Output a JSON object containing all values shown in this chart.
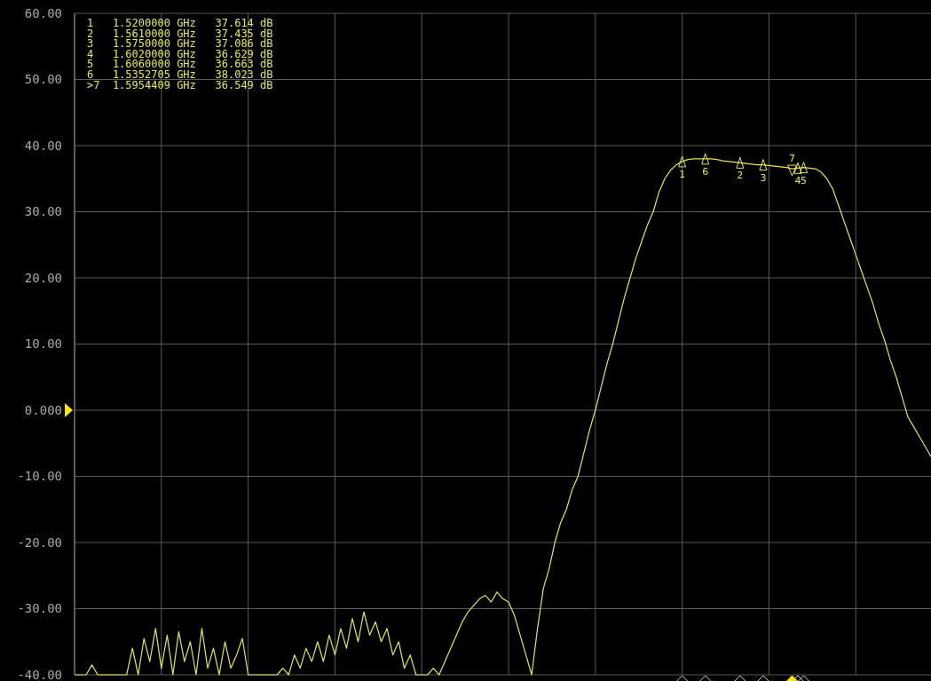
{
  "chart_data": {
    "type": "line",
    "categories": [
      null,
      null,
      null,
      null,
      null,
      null,
      null,
      null,
      null,
      null,
      null,
      null,
      null,
      null,
      null,
      null,
      null,
      null,
      null,
      null,
      null,
      null,
      null,
      null,
      null,
      null,
      null,
      null,
      null,
      null,
      null,
      null,
      null,
      null,
      null,
      null,
      null,
      null,
      null,
      null,
      null,
      null,
      null,
      null,
      null,
      null,
      null,
      null,
      null,
      null,
      null,
      null,
      null,
      null,
      null,
      null,
      null,
      null,
      null,
      null,
      null,
      null,
      null,
      null,
      null,
      null,
      null,
      null,
      null,
      null,
      null,
      null,
      null,
      null,
      null,
      null,
      null,
      null,
      null,
      null,
      null,
      null,
      null,
      null,
      null,
      null,
      null,
      null,
      null,
      null,
      null,
      null,
      null,
      null,
      null,
      null,
      null,
      null,
      null,
      null,
      null,
      null,
      null,
      null,
      null,
      null,
      null,
      null,
      null,
      null,
      null,
      null,
      null,
      null,
      null,
      null,
      null,
      null,
      null,
      null,
      null,
      null,
      null,
      null,
      null,
      null,
      null,
      null,
      null,
      null,
      null,
      null,
      null,
      null,
      null,
      null,
      null,
      null,
      null,
      null,
      null,
      null,
      null,
      null,
      null,
      null,
      null,
      null,
      null
    ],
    "ylim": [
      -40,
      60
    ],
    "yticks": [
      {
        "value": 60,
        "label": "60.00"
      },
      {
        "value": 50,
        "label": "50.00"
      },
      {
        "value": 40,
        "label": "40.00"
      },
      {
        "value": 30,
        "label": "30.00"
      },
      {
        "value": 20,
        "label": "20.00"
      },
      {
        "value": 10,
        "label": "10.00"
      },
      {
        "value": 0,
        "label": "0.000"
      },
      {
        "value": -10,
        "label": "-10.00"
      },
      {
        "value": -20,
        "label": "-20.00"
      },
      {
        "value": -30,
        "label": "-30.00"
      },
      {
        "value": -40,
        "label": "-40.00"
      }
    ],
    "tick_labels": "y",
    "grid": true,
    "marker": "none",
    "line_style": "solid",
    "series": [
      {
        "color": "#e6e65a",
        "values": [
          -40,
          -40,
          -40,
          -38.5,
          -40,
          -40,
          -40,
          -40,
          -40,
          -40,
          -36,
          -40,
          -34.5,
          -38,
          -33,
          -39,
          -34,
          -40,
          -33.5,
          -38,
          -35,
          -40,
          -33,
          -39,
          -36,
          -40,
          -35,
          -39,
          -37,
          -34.5,
          -40,
          -40,
          -40,
          -40,
          -40,
          -40,
          -39,
          -40,
          -37,
          -39,
          -36,
          -38,
          -35,
          -38,
          -34,
          -37,
          -33,
          -36,
          -31.5,
          -35,
          -30.5,
          -34,
          -32,
          -35,
          -33,
          -37,
          -35,
          -39,
          -37,
          -40,
          -40,
          -40,
          -39,
          -40,
          -38,
          -36,
          -34,
          -32,
          -30.5,
          -29.5,
          -28.5,
          -28,
          -29,
          -27.5,
          -28.5,
          -29,
          -31,
          -34,
          -37,
          -40,
          -33,
          -27,
          -24,
          -20,
          -17,
          -15,
          -12,
          -10,
          -6.5,
          -3,
          0,
          3.5,
          7,
          10,
          13.5,
          17,
          20,
          23,
          25.5,
          28,
          30,
          33,
          35,
          36.3,
          37.1,
          37.6,
          37.9,
          38,
          38,
          38,
          38,
          37.9,
          37.7,
          37.6,
          37.5,
          37.4,
          37.3,
          37.2,
          37.1,
          37.1,
          37,
          36.9,
          36.8,
          36.7,
          36.5,
          36.6,
          36.7,
          36.6,
          36.5,
          36,
          35,
          33.5,
          31,
          28.5,
          26,
          23.5,
          21,
          18.5,
          16,
          13,
          10.5,
          7.5,
          5,
          2,
          -1,
          -2.5,
          -4,
          -5.5,
          -7
        ]
      },
      {
        "name": "1",
        "type": "scatter",
        "marker": "triangle",
        "color": "#e6e65a",
        "values": [
          null,
          null,
          null,
          null,
          null,
          null,
          null,
          null,
          null,
          null,
          null,
          null,
          null,
          null,
          null,
          null,
          null,
          null,
          null,
          null,
          null,
          null,
          null,
          null,
          null,
          null,
          null,
          null,
          null,
          null,
          null,
          null,
          null,
          null,
          null,
          null,
          null,
          null,
          null,
          null,
          null,
          null,
          null,
          null,
          null,
          null,
          null,
          null,
          null,
          null,
          null,
          null,
          null,
          null,
          null,
          null,
          null,
          null,
          null,
          null,
          null,
          null,
          null,
          null,
          null,
          null,
          null,
          null,
          null,
          null,
          null,
          null,
          null,
          null,
          null,
          null,
          null,
          null,
          null,
          null,
          null,
          null,
          null,
          null,
          null,
          null,
          null,
          null,
          null,
          null,
          null,
          null,
          null,
          null,
          null,
          null,
          null,
          null,
          null,
          null,
          null,
          null,
          null,
          null,
          null,
          37.6,
          null,
          null,
          null,
          null,
          null,
          null,
          null,
          null,
          null,
          null,
          null,
          null,
          null,
          null,
          null,
          null,
          null,
          null,
          null,
          null,
          null,
          null,
          null,
          null,
          null,
          null,
          null,
          null,
          null,
          null,
          null,
          null,
          null,
          null,
          null,
          null,
          null,
          null,
          null,
          null,
          null,
          null,
          null
        ]
      },
      {
        "name": "2",
        "type": "scatter",
        "marker": "triangle",
        "color": "#e6e65a",
        "values": [
          null,
          null,
          null,
          null,
          null,
          null,
          null,
          null,
          null,
          null,
          null,
          null,
          null,
          null,
          null,
          null,
          null,
          null,
          null,
          null,
          null,
          null,
          null,
          null,
          null,
          null,
          null,
          null,
          null,
          null,
          null,
          null,
          null,
          null,
          null,
          null,
          null,
          null,
          null,
          null,
          null,
          null,
          null,
          null,
          null,
          null,
          null,
          null,
          null,
          null,
          null,
          null,
          null,
          null,
          null,
          null,
          null,
          null,
          null,
          null,
          null,
          null,
          null,
          null,
          null,
          null,
          null,
          null,
          null,
          null,
          null,
          null,
          null,
          null,
          null,
          null,
          null,
          null,
          null,
          null,
          null,
          null,
          null,
          null,
          null,
          null,
          null,
          null,
          null,
          null,
          null,
          null,
          null,
          null,
          null,
          null,
          null,
          null,
          null,
          null,
          null,
          null,
          null,
          null,
          null,
          null,
          null,
          null,
          null,
          null,
          null,
          null,
          null,
          null,
          null,
          37.4,
          null,
          null,
          null,
          null,
          null,
          null,
          null,
          null,
          null,
          null,
          null,
          null,
          null,
          null,
          null,
          null,
          null,
          null,
          null,
          null,
          null,
          null,
          null,
          null,
          null,
          null,
          null,
          null,
          null,
          null,
          null,
          null,
          null
        ]
      },
      {
        "name": "3",
        "type": "scatter",
        "marker": "triangle",
        "color": "#e6e65a",
        "values": [
          null,
          null,
          null,
          null,
          null,
          null,
          null,
          null,
          null,
          null,
          null,
          null,
          null,
          null,
          null,
          null,
          null,
          null,
          null,
          null,
          null,
          null,
          null,
          null,
          null,
          null,
          null,
          null,
          null,
          null,
          null,
          null,
          null,
          null,
          null,
          null,
          null,
          null,
          null,
          null,
          null,
          null,
          null,
          null,
          null,
          null,
          null,
          null,
          null,
          null,
          null,
          null,
          null,
          null,
          null,
          null,
          null,
          null,
          null,
          null,
          null,
          null,
          null,
          null,
          null,
          null,
          null,
          null,
          null,
          null,
          null,
          null,
          null,
          null,
          null,
          null,
          null,
          null,
          null,
          null,
          null,
          null,
          null,
          null,
          null,
          null,
          null,
          null,
          null,
          null,
          null,
          null,
          null,
          null,
          null,
          null,
          null,
          null,
          null,
          null,
          null,
          null,
          null,
          null,
          null,
          null,
          null,
          null,
          null,
          null,
          null,
          null,
          null,
          null,
          null,
          null,
          null,
          null,
          null,
          37.1,
          null,
          null,
          null,
          null,
          null,
          null,
          null,
          null,
          null,
          null,
          null,
          null,
          null,
          null,
          null,
          null,
          null,
          null,
          null,
          null,
          null,
          null,
          null,
          null,
          null,
          null,
          null,
          null,
          null
        ]
      },
      {
        "name": "4",
        "type": "scatter",
        "marker": "triangle",
        "color": "#e6e65a",
        "values": [
          null,
          null,
          null,
          null,
          null,
          null,
          null,
          null,
          null,
          null,
          null,
          null,
          null,
          null,
          null,
          null,
          null,
          null,
          null,
          null,
          null,
          null,
          null,
          null,
          null,
          null,
          null,
          null,
          null,
          null,
          null,
          null,
          null,
          null,
          null,
          null,
          null,
          null,
          null,
          null,
          null,
          null,
          null,
          null,
          null,
          null,
          null,
          null,
          null,
          null,
          null,
          null,
          null,
          null,
          null,
          null,
          null,
          null,
          null,
          null,
          null,
          null,
          null,
          null,
          null,
          null,
          null,
          null,
          null,
          null,
          null,
          null,
          null,
          null,
          null,
          null,
          null,
          null,
          null,
          null,
          null,
          null,
          null,
          null,
          null,
          null,
          null,
          null,
          null,
          null,
          null,
          null,
          null,
          null,
          null,
          null,
          null,
          null,
          null,
          null,
          null,
          null,
          null,
          null,
          null,
          null,
          null,
          null,
          null,
          null,
          null,
          null,
          null,
          null,
          null,
          null,
          null,
          null,
          null,
          null,
          null,
          null,
          null,
          null,
          null,
          36.6,
          null,
          null,
          null,
          null,
          null,
          null,
          null,
          null,
          null,
          null,
          null,
          null,
          null,
          null,
          null,
          null,
          null,
          null,
          null,
          null,
          null,
          null,
          null
        ]
      },
      {
        "name": "5",
        "type": "scatter",
        "marker": "triangle",
        "color": "#e6e65a",
        "values": [
          null,
          null,
          null,
          null,
          null,
          null,
          null,
          null,
          null,
          null,
          null,
          null,
          null,
          null,
          null,
          null,
          null,
          null,
          null,
          null,
          null,
          null,
          null,
          null,
          null,
          null,
          null,
          null,
          null,
          null,
          null,
          null,
          null,
          null,
          null,
          null,
          null,
          null,
          null,
          null,
          null,
          null,
          null,
          null,
          null,
          null,
          null,
          null,
          null,
          null,
          null,
          null,
          null,
          null,
          null,
          null,
          null,
          null,
          null,
          null,
          null,
          null,
          null,
          null,
          null,
          null,
          null,
          null,
          null,
          null,
          null,
          null,
          null,
          null,
          null,
          null,
          null,
          null,
          null,
          null,
          null,
          null,
          null,
          null,
          null,
          null,
          null,
          null,
          null,
          null,
          null,
          null,
          null,
          null,
          null,
          null,
          null,
          null,
          null,
          null,
          null,
          null,
          null,
          null,
          null,
          null,
          null,
          null,
          null,
          null,
          null,
          null,
          null,
          null,
          null,
          null,
          null,
          null,
          null,
          null,
          null,
          null,
          null,
          null,
          null,
          null,
          36.7,
          null,
          null,
          null,
          null,
          null,
          null,
          null,
          null,
          null,
          null,
          null,
          null,
          null,
          null,
          null,
          null,
          null,
          null,
          null,
          null,
          null,
          null
        ]
      },
      {
        "name": "6",
        "type": "scatter",
        "marker": "triangle",
        "color": "#e6e65a",
        "values": [
          null,
          null,
          null,
          null,
          null,
          null,
          null,
          null,
          null,
          null,
          null,
          null,
          null,
          null,
          null,
          null,
          null,
          null,
          null,
          null,
          null,
          null,
          null,
          null,
          null,
          null,
          null,
          null,
          null,
          null,
          null,
          null,
          null,
          null,
          null,
          null,
          null,
          null,
          null,
          null,
          null,
          null,
          null,
          null,
          null,
          null,
          null,
          null,
          null,
          null,
          null,
          null,
          null,
          null,
          null,
          null,
          null,
          null,
          null,
          null,
          null,
          null,
          null,
          null,
          null,
          null,
          null,
          null,
          null,
          null,
          null,
          null,
          null,
          null,
          null,
          null,
          null,
          null,
          null,
          null,
          null,
          null,
          null,
          null,
          null,
          null,
          null,
          null,
          null,
          null,
          null,
          null,
          null,
          null,
          null,
          null,
          null,
          null,
          null,
          null,
          null,
          null,
          null,
          null,
          null,
          null,
          null,
          null,
          null,
          38,
          null,
          null,
          null,
          null,
          null,
          null,
          null,
          null,
          null,
          null,
          null,
          null,
          null,
          null,
          null,
          null,
          null,
          null,
          null,
          null,
          null,
          null,
          null,
          null,
          null,
          null,
          null,
          null,
          null,
          null,
          null,
          null,
          null,
          null,
          null,
          null,
          null,
          null,
          null
        ]
      },
      {
        "name": "7",
        "type": "scatter",
        "marker": "triangle",
        "color": "#e6e65a",
        "values": [
          null,
          null,
          null,
          null,
          null,
          null,
          null,
          null,
          null,
          null,
          null,
          null,
          null,
          null,
          null,
          null,
          null,
          null,
          null,
          null,
          null,
          null,
          null,
          null,
          null,
          null,
          null,
          null,
          null,
          null,
          null,
          null,
          null,
          null,
          null,
          null,
          null,
          null,
          null,
          null,
          null,
          null,
          null,
          null,
          null,
          null,
          null,
          null,
          null,
          null,
          null,
          null,
          null,
          null,
          null,
          null,
          null,
          null,
          null,
          null,
          null,
          null,
          null,
          null,
          null,
          null,
          null,
          null,
          null,
          null,
          null,
          null,
          null,
          null,
          null,
          null,
          null,
          null,
          null,
          null,
          null,
          null,
          null,
          null,
          null,
          null,
          null,
          null,
          null,
          null,
          null,
          null,
          null,
          null,
          null,
          null,
          null,
          null,
          null,
          null,
          null,
          null,
          null,
          null,
          null,
          null,
          null,
          null,
          null,
          null,
          null,
          null,
          null,
          null,
          null,
          null,
          null,
          null,
          null,
          null,
          null,
          null,
          null,
          null,
          36.5,
          null,
          null,
          null,
          null,
          null,
          null,
          null,
          null,
          null,
          null,
          null,
          null,
          null,
          null,
          null,
          null,
          null,
          null,
          null,
          null,
          null,
          null,
          null,
          null
        ]
      }
    ],
    "annotations": [
      "1   1.5200000 GHz   37.614 dB",
      "2   1.5610000 GHz   37.435 dB",
      "3   1.5750000 GHz   37.086 dB",
      "4   1.6020000 GHz   36.629 dB",
      "5   1.6060000 GHz   36.663 dB",
      "6   1.5352705 GHz   38.023 dB",
      ">7  1.5954409 GHz   36.549 dB"
    ]
  }
}
